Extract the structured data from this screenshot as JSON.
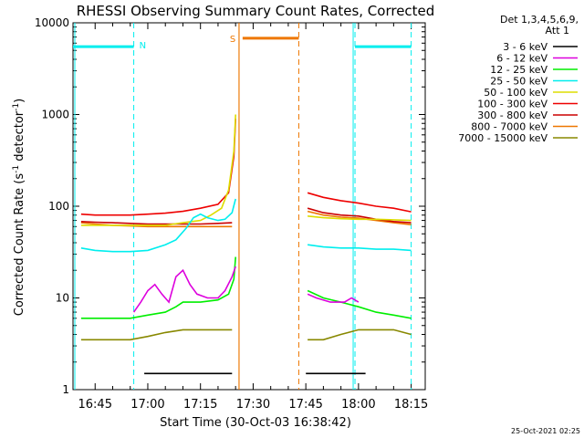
{
  "chart_data": {
    "type": "line",
    "title": "RHESSI Observing Summary Count Rates, Corrected",
    "xlabel": "Start Time (30-Oct-03 16:38:42)",
    "ylabel": "Corrected Count Rate (s",
    "ylabel_sup1": "-1",
    "ylabel_mid": " detector",
    "ylabel_sup2": "-1",
    "ylabel_end": ")",
    "y_scale": "log",
    "ylim": [
      1,
      10000
    ],
    "xlim": [
      "16:38:42",
      "18:19:00"
    ],
    "x_ticks": [
      "16:45",
      "17:00",
      "17:15",
      "17:30",
      "17:45",
      "18:00",
      "18:15"
    ],
    "y_ticks": [
      "1",
      "10",
      "100",
      "1000",
      "10000"
    ],
    "legend": {
      "placement": "top-right outside",
      "header": [
        "Det 1,3,4,5,6,9,",
        "Att 1"
      ]
    },
    "series": [
      {
        "name": "3 - 6 keV",
        "color": "#000000",
        "points": [
          [
            "16:38:42",
            null
          ],
          [
            "16:58:00",
            null
          ],
          [
            "16:59:00",
            1.5
          ],
          [
            "17:05:00",
            1.5
          ],
          [
            "17:10:00",
            1.5
          ],
          [
            "17:15:00",
            1.5
          ],
          [
            "17:20:00",
            1.5
          ],
          [
            "17:24:00",
            1.5
          ],
          [
            "17:25:00",
            null
          ],
          [
            "17:44:00",
            null
          ],
          [
            "17:45:00",
            1.5
          ],
          [
            "17:50:00",
            1.5
          ],
          [
            "17:55:00",
            1.5
          ],
          [
            "18:02:00",
            1.5
          ],
          [
            "18:04:00",
            null
          ]
        ]
      },
      {
        "name": "6 - 12 keV",
        "color": "#dd00dd",
        "points": [
          [
            "16:38:42",
            null
          ],
          [
            "16:55:00",
            null
          ],
          [
            "16:56:00",
            7.0
          ],
          [
            "16:58:00",
            9.0
          ],
          [
            "17:00:00",
            12
          ],
          [
            "17:02:00",
            14
          ],
          [
            "17:04:00",
            11
          ],
          [
            "17:06:00",
            9
          ],
          [
            "17:08:00",
            17
          ],
          [
            "17:10:00",
            20
          ],
          [
            "17:12:00",
            14
          ],
          [
            "17:14:00",
            11
          ],
          [
            "17:17:00",
            10
          ],
          [
            "17:20:00",
            10
          ],
          [
            "17:22:00",
            12
          ],
          [
            "17:24:00",
            17
          ],
          [
            "17:25:00",
            22
          ],
          [
            "17:45:00",
            null
          ],
          [
            "17:45:30",
            11
          ],
          [
            "17:48:00",
            10
          ],
          [
            "17:52:00",
            9
          ],
          [
            "17:56:00",
            9
          ],
          [
            "17:58:00",
            10
          ],
          [
            "18:00:00",
            9
          ],
          [
            "18:02:00",
            null
          ]
        ]
      },
      {
        "name": "12 - 25 keV",
        "color": "#00ee00",
        "points": [
          [
            "16:38:42",
            null
          ],
          [
            "16:41:00",
            6.0
          ],
          [
            "16:45:00",
            6.0
          ],
          [
            "16:50:00",
            6.0
          ],
          [
            "16:55:00",
            6.0
          ],
          [
            "17:00:00",
            6.5
          ],
          [
            "17:05:00",
            7.0
          ],
          [
            "17:08:00",
            8.0
          ],
          [
            "17:10:00",
            9.0
          ],
          [
            "17:15:00",
            9.0
          ],
          [
            "17:20:00",
            9.5
          ],
          [
            "17:23:00",
            11
          ],
          [
            "17:24:30",
            16
          ],
          [
            "17:25:00",
            28
          ],
          [
            "17:45:00",
            null
          ],
          [
            "17:45:30",
            12
          ],
          [
            "17:50:00",
            10
          ],
          [
            "17:55:00",
            9
          ],
          [
            "18:00:00",
            8
          ],
          [
            "18:05:00",
            7
          ],
          [
            "18:10:00",
            6.5
          ],
          [
            "18:15:00",
            6.0
          ],
          [
            "18:16:00",
            null
          ]
        ]
      },
      {
        "name": "25 - 50 keV",
        "color": "#00eeee",
        "points": [
          [
            "16:38:42",
            null
          ],
          [
            "16:41:00",
            35
          ],
          [
            "16:45:00",
            33
          ],
          [
            "16:50:00",
            32
          ],
          [
            "16:55:00",
            32
          ],
          [
            "17:00:00",
            33
          ],
          [
            "17:05:00",
            38
          ],
          [
            "17:08:00",
            43
          ],
          [
            "17:11:00",
            58
          ],
          [
            "17:13:00",
            75
          ],
          [
            "17:15:00",
            82
          ],
          [
            "17:17:00",
            75
          ],
          [
            "17:20:00",
            70
          ],
          [
            "17:22:00",
            72
          ],
          [
            "17:24:00",
            85
          ],
          [
            "17:25:00",
            120
          ],
          [
            "17:45:00",
            null
          ],
          [
            "17:45:30",
            38
          ],
          [
            "17:50:00",
            36
          ],
          [
            "17:55:00",
            35
          ],
          [
            "18:00:00",
            35
          ],
          [
            "18:05:00",
            34
          ],
          [
            "18:10:00",
            34
          ],
          [
            "18:15:00",
            33
          ],
          [
            "18:16:00",
            null
          ]
        ]
      },
      {
        "name": "50 - 100 keV",
        "color": "#dddd00",
        "points": [
          [
            "16:38:42",
            null
          ],
          [
            "16:41:00",
            62
          ],
          [
            "16:45:00",
            62
          ],
          [
            "16:50:00",
            62
          ],
          [
            "16:55:00",
            62
          ],
          [
            "17:00:00",
            62
          ],
          [
            "17:05:00",
            62
          ],
          [
            "17:10:00",
            66
          ],
          [
            "17:15:00",
            70
          ],
          [
            "17:18:00",
            80
          ],
          [
            "17:21:00",
            95
          ],
          [
            "17:23:00",
            150
          ],
          [
            "17:24:30",
            400
          ],
          [
            "17:25:00",
            1000
          ],
          [
            "17:45:00",
            null
          ],
          [
            "17:45:30",
            78
          ],
          [
            "17:50:00",
            75
          ],
          [
            "17:55:00",
            73
          ],
          [
            "18:00:00",
            72
          ],
          [
            "18:05:00",
            72
          ],
          [
            "18:10:00",
            71
          ],
          [
            "18:15:00",
            70
          ],
          [
            "18:16:00",
            null
          ]
        ]
      },
      {
        "name": "100 - 300 keV",
        "color": "#ee0000",
        "points": [
          [
            "16:38:42",
            null
          ],
          [
            "16:41:00",
            82
          ],
          [
            "16:45:00",
            80
          ],
          [
            "16:50:00",
            80
          ],
          [
            "16:55:00",
            80
          ],
          [
            "17:00:00",
            82
          ],
          [
            "17:05:00",
            84
          ],
          [
            "17:10:00",
            88
          ],
          [
            "17:15:00",
            95
          ],
          [
            "17:20:00",
            105
          ],
          [
            "17:23:00",
            140
          ],
          [
            "17:24:30",
            350
          ],
          [
            "17:25:00",
            900
          ],
          [
            "17:45:00",
            null
          ],
          [
            "17:45:30",
            140
          ],
          [
            "17:50:00",
            125
          ],
          [
            "17:55:00",
            115
          ],
          [
            "18:00:00",
            108
          ],
          [
            "18:05:00",
            100
          ],
          [
            "18:10:00",
            95
          ],
          [
            "18:15:00",
            87
          ],
          [
            "18:16:00",
            null
          ]
        ]
      },
      {
        "name": "300 - 800 keV",
        "color": "#cc0000",
        "points": [
          [
            "16:38:42",
            null
          ],
          [
            "16:41:00",
            68
          ],
          [
            "16:45:00",
            67
          ],
          [
            "16:50:00",
            66
          ],
          [
            "16:55:00",
            65
          ],
          [
            "17:00:00",
            64
          ],
          [
            "17:05:00",
            64
          ],
          [
            "17:10:00",
            64
          ],
          [
            "17:15:00",
            64
          ],
          [
            "17:20:00",
            65
          ],
          [
            "17:24:00",
            66
          ],
          [
            "17:25:00",
            null
          ],
          [
            "17:45:00",
            null
          ],
          [
            "17:45:30",
            95
          ],
          [
            "17:50:00",
            85
          ],
          [
            "17:55:00",
            80
          ],
          [
            "18:00:00",
            78
          ],
          [
            "18:05:00",
            72
          ],
          [
            "18:10:00",
            68
          ],
          [
            "18:15:00",
            66
          ],
          [
            "18:16:00",
            null
          ]
        ]
      },
      {
        "name": "800 - 7000 keV",
        "color": "#ee7700",
        "points": [
          [
            "16:38:42",
            null
          ],
          [
            "16:41:00",
            66
          ],
          [
            "16:45:00",
            64
          ],
          [
            "16:50:00",
            62
          ],
          [
            "16:55:00",
            61
          ],
          [
            "17:00:00",
            60
          ],
          [
            "17:05:00",
            60
          ],
          [
            "17:10:00",
            60
          ],
          [
            "17:15:00",
            60
          ],
          [
            "17:20:00",
            60
          ],
          [
            "17:24:00",
            60
          ],
          [
            "17:25:00",
            null
          ],
          [
            "17:45:00",
            null
          ],
          [
            "17:45:30",
            88
          ],
          [
            "17:50:00",
            80
          ],
          [
            "17:55:00",
            76
          ],
          [
            "18:00:00",
            74
          ],
          [
            "18:05:00",
            70
          ],
          [
            "18:10:00",
            66
          ],
          [
            "18:15:00",
            63
          ],
          [
            "18:16:00",
            null
          ]
        ]
      },
      {
        "name": "7000 - 15000 keV",
        "color": "#888800",
        "points": [
          [
            "16:38:42",
            null
          ],
          [
            "16:41:00",
            3.5
          ],
          [
            "16:45:00",
            3.5
          ],
          [
            "16:50:00",
            3.5
          ],
          [
            "16:55:00",
            3.5
          ],
          [
            "17:00:00",
            3.8
          ],
          [
            "17:05:00",
            4.2
          ],
          [
            "17:10:00",
            4.5
          ],
          [
            "17:15:00",
            4.5
          ],
          [
            "17:20:00",
            4.5
          ],
          [
            "17:24:00",
            4.5
          ],
          [
            "17:25:00",
            null
          ],
          [
            "17:45:00",
            null
          ],
          [
            "17:45:30",
            3.5
          ],
          [
            "17:50:00",
            3.5
          ],
          [
            "17:55:00",
            4.0
          ],
          [
            "18:00:00",
            4.5
          ],
          [
            "18:05:00",
            4.5
          ],
          [
            "18:10:00",
            4.5
          ],
          [
            "18:15:00",
            4.0
          ],
          [
            "18:16:00",
            null
          ]
        ]
      }
    ],
    "night_marks": {
      "label": "N",
      "color": "#00eeee",
      "level": 5500,
      "segments": [
        [
          "16:38:42",
          "16:56:00"
        ],
        [
          "17:59:00",
          "18:15:00"
        ]
      ],
      "boundaries": [
        "16:56:00",
        "17:59:00",
        "18:15:00"
      ]
    },
    "saa_marks": {
      "label": "S",
      "color": "#ee7700",
      "level": 6800,
      "segment": [
        "17:27:00",
        "17:43:00"
      ],
      "boundaries": [
        "17:26:00",
        "17:43:00"
      ]
    },
    "timestamp": "25-Oct-2021 02:25"
  }
}
